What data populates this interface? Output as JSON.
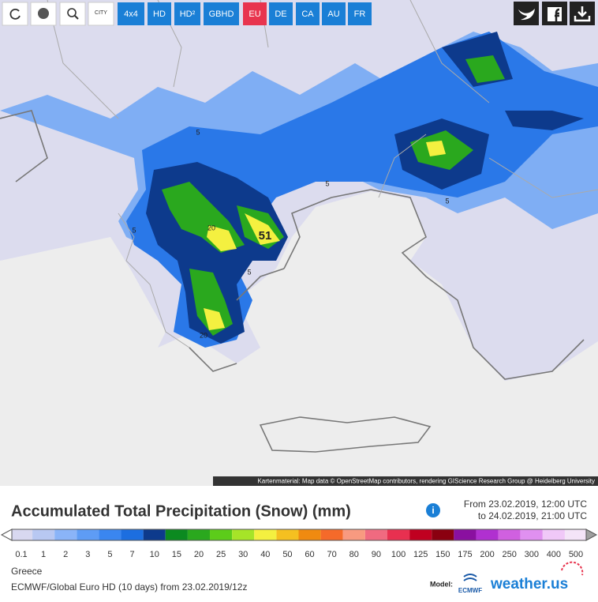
{
  "toolbar": {
    "city": "CITY",
    "buttons": [
      "4x4",
      "HD",
      "HD²",
      "GBHD",
      "EU",
      "DE",
      "CA",
      "AU",
      "FR"
    ]
  },
  "map": {
    "labels": [
      "5",
      "5",
      "20",
      "5",
      "51",
      "5",
      "20",
      "5"
    ],
    "attribution": "Kartenmaterial: Map data © OpenStreetMap contributors, rendering GIScience Research Group @ Heidelberg University"
  },
  "legend": {
    "title": "Accumulated Total Precipitation (Snow) (mm)",
    "info": "i",
    "period": [
      "From 23.02.2019, 12:00 UTC",
      "to 24.02.2019, 21:00 UTC"
    ],
    "steps": [
      {
        "value": 0.1,
        "color": "#d8d8f0"
      },
      {
        "value": 1,
        "color": "#b8c8f2"
      },
      {
        "value": 2,
        "color": "#8ab4f8"
      },
      {
        "value": 3,
        "color": "#5e9cf5"
      },
      {
        "value": 5,
        "color": "#3a86f0"
      },
      {
        "value": 7,
        "color": "#1c6ee0"
      },
      {
        "value": 10,
        "color": "#0d3a8c"
      },
      {
        "value": 15,
        "color": "#0b8a20"
      },
      {
        "value": 20,
        "color": "#2aa81e"
      },
      {
        "value": 25,
        "color": "#5ccc1a"
      },
      {
        "value": 30,
        "color": "#a6e428"
      },
      {
        "value": 40,
        "color": "#f4f040"
      },
      {
        "value": 50,
        "color": "#f5c020"
      },
      {
        "value": 60,
        "color": "#f08a10"
      },
      {
        "value": 70,
        "color": "#f56a2a"
      },
      {
        "value": 80,
        "color": "#f89a80"
      },
      {
        "value": 90,
        "color": "#f06a80"
      },
      {
        "value": 100,
        "color": "#e83050"
      },
      {
        "value": 125,
        "color": "#c00020"
      },
      {
        "value": 150,
        "color": "#8a0010"
      },
      {
        "value": 175,
        "color": "#8a10a0"
      },
      {
        "value": 200,
        "color": "#b030d0"
      },
      {
        "value": 250,
        "color": "#d060e0"
      },
      {
        "value": 300,
        "color": "#e090f0"
      },
      {
        "value": 400,
        "color": "#f0c8f8"
      },
      {
        "value": 500,
        "color": "#f4e4f8"
      }
    ],
    "region": "Greece",
    "source": "ECMWF/Global Euro HD (10 days) from 23.02.2019/12z",
    "model_label": "Model:",
    "logos": [
      "ECMWF",
      "weather.us"
    ]
  }
}
